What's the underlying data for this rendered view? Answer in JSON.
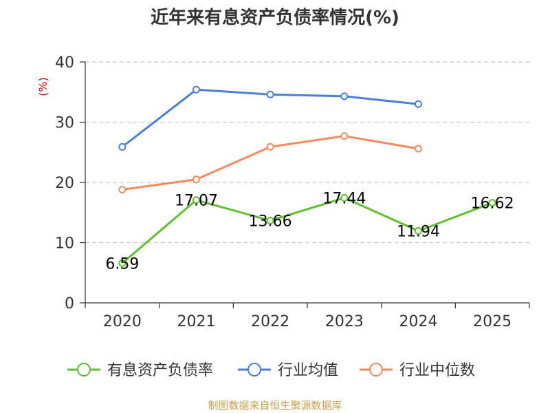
{
  "chart_data": {
    "type": "line",
    "title": "近年来有息资产负债率情况(%)",
    "ylabel": "(%)",
    "xlabel": "",
    "categories": [
      "2020",
      "2021",
      "2022",
      "2023",
      "2024",
      "2025"
    ],
    "ylim": [
      0,
      40
    ],
    "yticks": [
      0,
      10,
      20,
      30,
      40
    ],
    "grid": true,
    "legend_position": "bottom",
    "series": [
      {
        "name": "有息资产负债率",
        "color": "#5ec02c",
        "values": [
          6.59,
          17.07,
          13.66,
          17.44,
          11.94,
          16.62
        ],
        "labels": [
          "6.59",
          "17.07",
          "13.66",
          "17.44",
          "11.94",
          "16.62"
        ],
        "show_labels": true
      },
      {
        "name": "行业均值",
        "color": "#4a7fd9",
        "values": [
          25.9,
          35.4,
          34.6,
          34.3,
          33.0,
          null
        ],
        "show_labels": false
      },
      {
        "name": "行业中位数",
        "color": "#f58a5b",
        "values": [
          18.8,
          20.5,
          25.9,
          27.7,
          25.6,
          null
        ],
        "show_labels": false
      }
    ]
  },
  "footer": {
    "source": "制图数据来自恒生聚源数据库"
  }
}
